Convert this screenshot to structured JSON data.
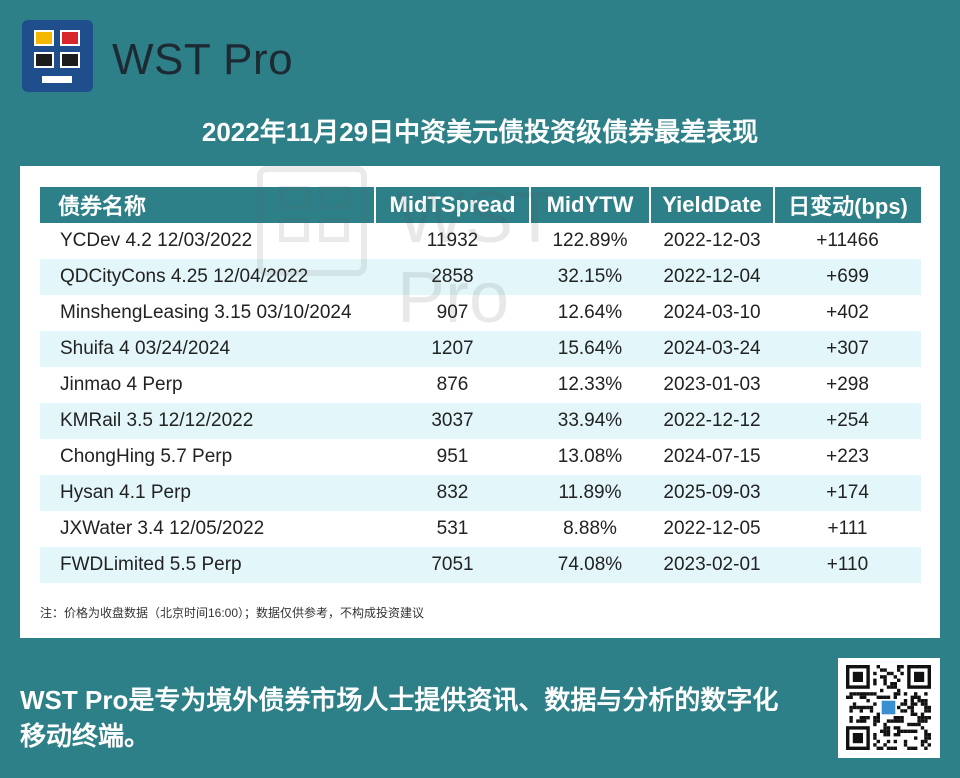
{
  "brand": {
    "name": "WST Pro"
  },
  "title": "2022年11月29日中资美元债投资级债券最差表现",
  "table": {
    "headers": [
      "债券名称",
      "MidTSpread",
      "MidYTW",
      "YieldDate",
      "日变动(bps)"
    ],
    "rows": [
      [
        "YCDev 4.2 12/03/2022",
        "11932",
        "122.89%",
        "2022-12-03",
        "+11466"
      ],
      [
        "QDCityCons 4.25 12/04/2022",
        "2858",
        "32.15%",
        "2022-12-04",
        "+699"
      ],
      [
        "MinshengLeasing 3.15 03/10/2024",
        "907",
        "12.64%",
        "2024-03-10",
        "+402"
      ],
      [
        "Shuifa 4 03/24/2024",
        "1207",
        "15.64%",
        "2024-03-24",
        "+307"
      ],
      [
        "Jinmao 4 Perp",
        "876",
        "12.33%",
        "2023-01-03",
        "+298"
      ],
      [
        "KMRail 3.5 12/12/2022",
        "3037",
        "33.94%",
        "2022-12-12",
        "+254"
      ],
      [
        "ChongHing 5.7 Perp",
        "951",
        "13.08%",
        "2024-07-15",
        "+223"
      ],
      [
        "Hysan 4.1 Perp",
        "832",
        "11.89%",
        "2025-09-03",
        "+174"
      ],
      [
        "JXWater 3.4 12/05/2022",
        "531",
        "8.88%",
        "2022-12-05",
        "+111"
      ],
      [
        "FWDLimited 5.5 Perp",
        "7051",
        "74.08%",
        "2023-02-01",
        "+110"
      ]
    ]
  },
  "note": "注：价格为收盘数据（北京时间16:00）；数据仅供参考，不构成投资建议",
  "watermark": "WST Pro",
  "footer": "WST Pro是专为境外债券市场人士提供资讯、数据与分析的数字化移动终端。",
  "colors": {
    "background": "#2d8088",
    "logo": "#1f4e8c",
    "row_alt": "#e3f7fa"
  }
}
